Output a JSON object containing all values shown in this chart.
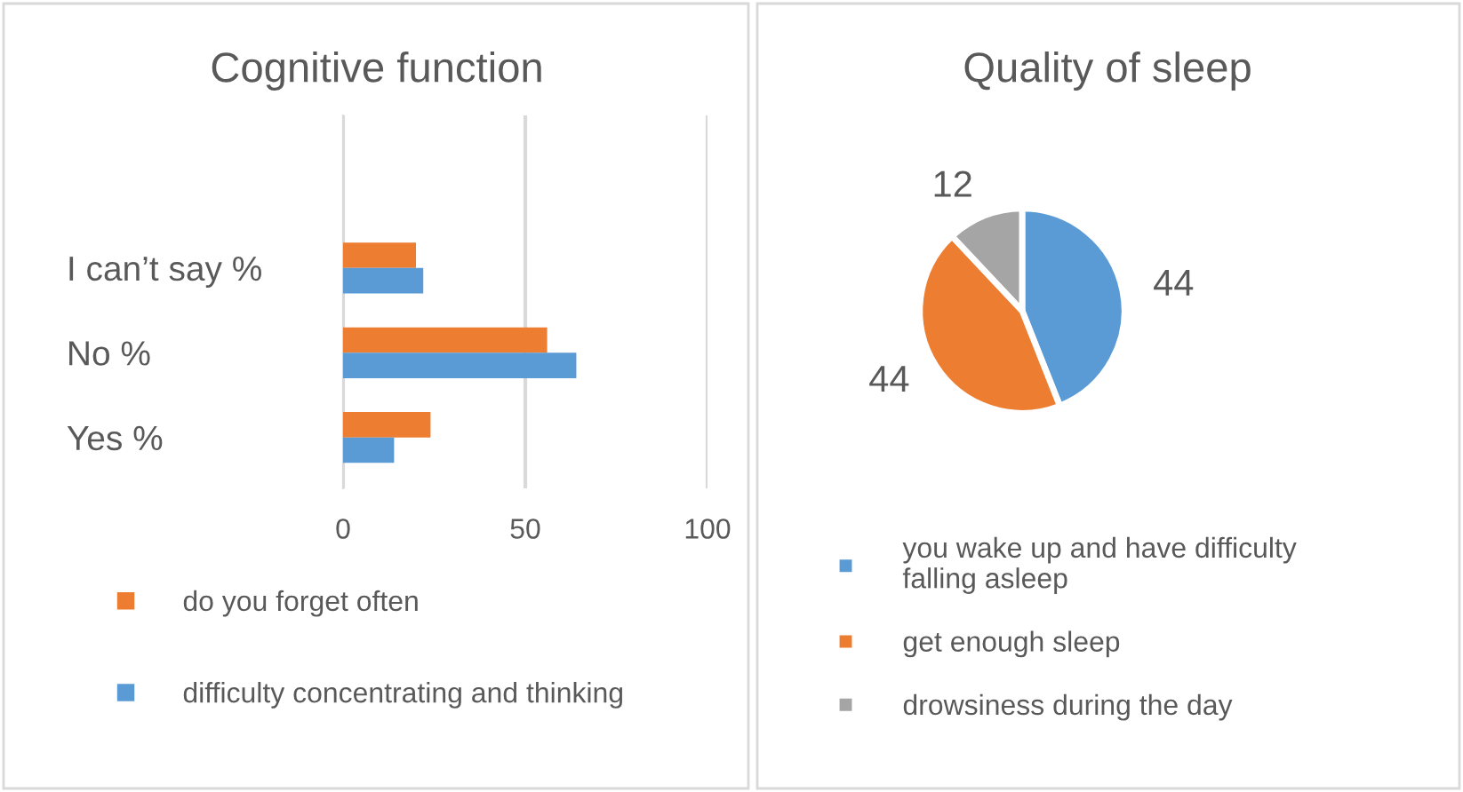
{
  "chart_data": [
    {
      "type": "bar",
      "orientation": "horizontal",
      "title": "Cognitive function",
      "categories": [
        "I can’t say %",
        "No %",
        "Yes %"
      ],
      "series": [
        {
          "name": "do you forget often",
          "color": "#ed7d31",
          "values": [
            20,
            56,
            24
          ]
        },
        {
          "name": "difficulty concentrating and thinking",
          "color": "#5b9bd5",
          "values": [
            22,
            64,
            14
          ]
        }
      ],
      "xlim": [
        0,
        100
      ],
      "xticks": [
        0,
        50,
        100
      ],
      "grid": "x",
      "legend": "bottom"
    },
    {
      "type": "pie",
      "title": "Quality of sleep",
      "categories": [
        "you wake up and have difficulty\nfalling asleep",
        "get enough sleep",
        "drowsiness during the day"
      ],
      "values": [
        44,
        44,
        12
      ],
      "colors": [
        "#5b9bd5",
        "#ed7d31",
        "#a5a5a5"
      ],
      "data_labels": true,
      "legend": "bottom"
    }
  ]
}
